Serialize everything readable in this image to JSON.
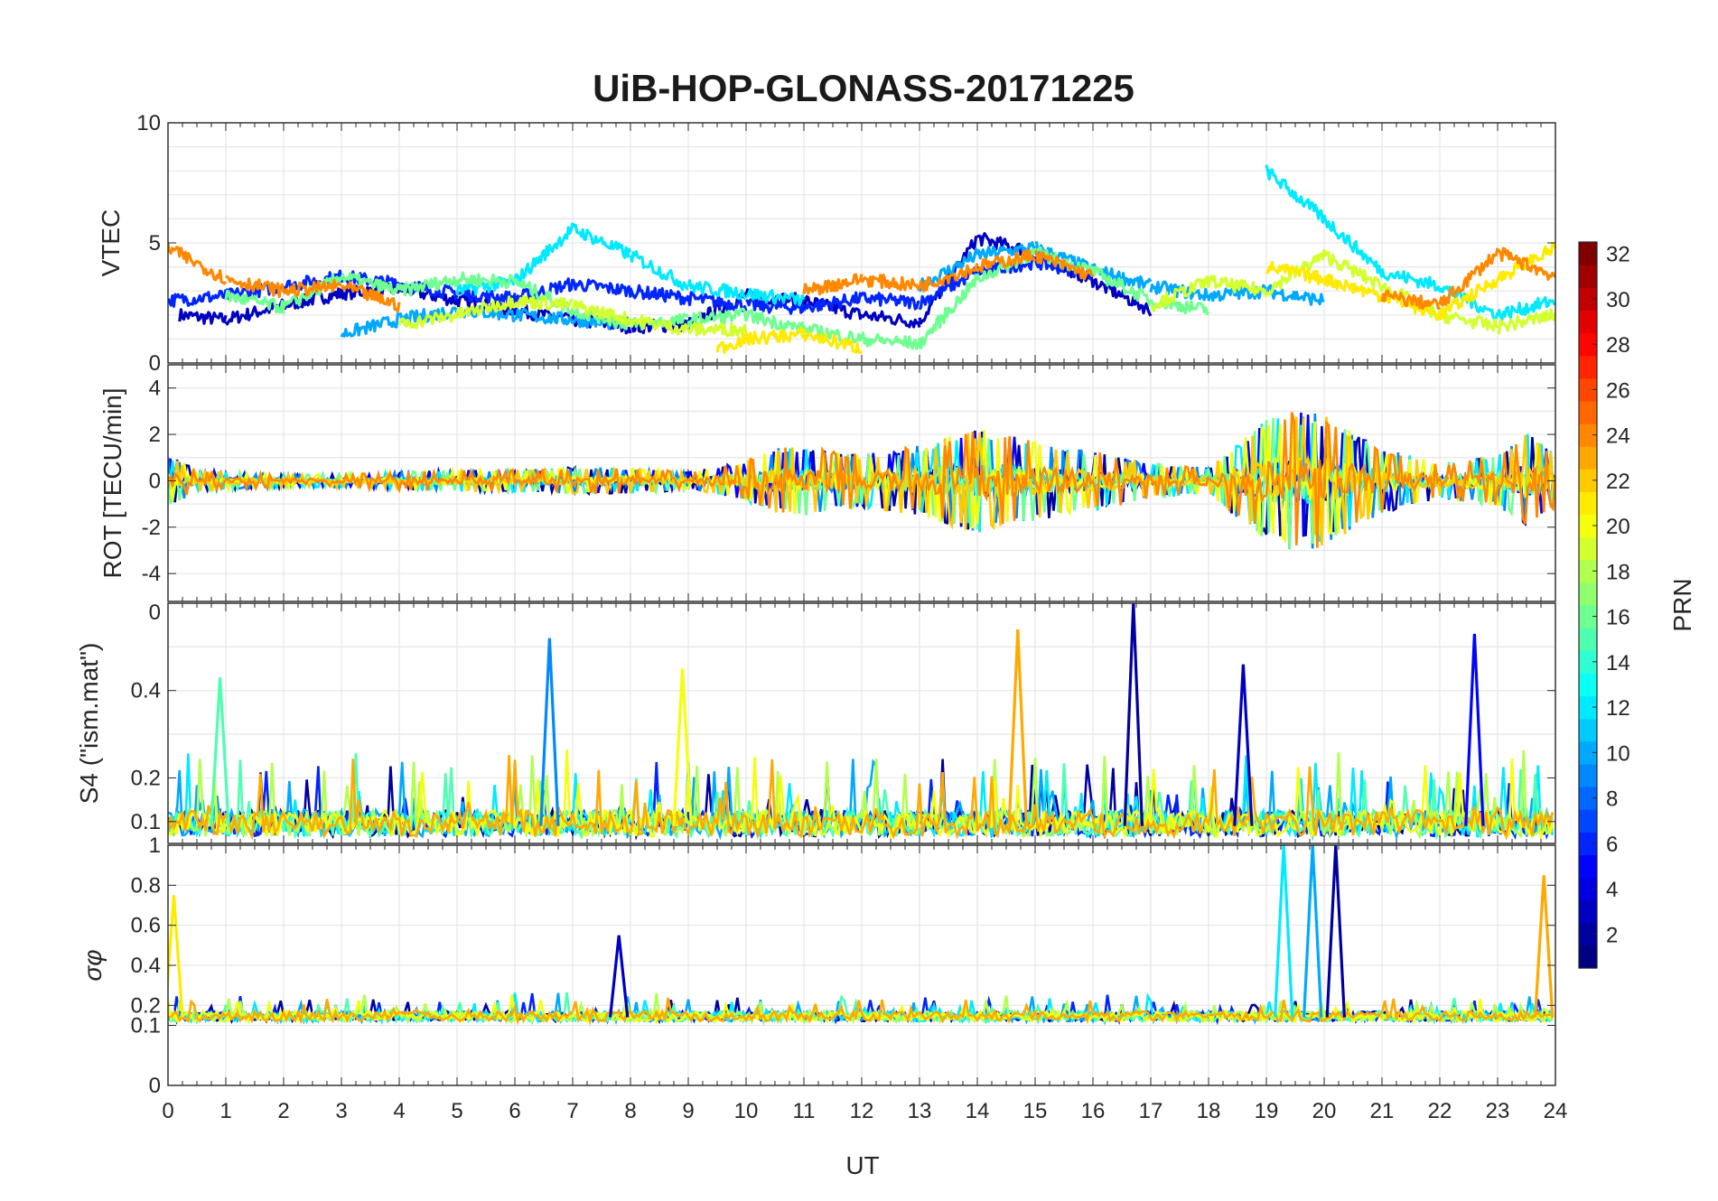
{
  "title": "UiB-HOP-GLONASS-20171225",
  "colorbar": {
    "label": "PRN",
    "ticks": [
      2,
      4,
      6,
      8,
      10,
      12,
      14,
      16,
      18,
      20,
      22,
      24,
      26,
      28,
      30,
      32
    ],
    "range": [
      1,
      32
    ],
    "colormap": "jet"
  },
  "chart_data": [
    {
      "type": "line",
      "panel": "vtec",
      "ylabel": "VTEC",
      "ylim": [
        0,
        10
      ],
      "yticks": [
        "0",
        "5",
        "10"
      ],
      "ytick_values": [
        0,
        5,
        10
      ],
      "grid": true,
      "series": [
        {
          "prn": 3,
          "x": [
            0.2,
            1,
            2,
            3,
            4,
            5,
            6,
            7,
            8,
            9,
            10,
            11,
            12,
            13,
            14,
            15,
            16,
            17
          ],
          "y": [
            2.0,
            1.8,
            2.4,
            2.9,
            3.1,
            2.6,
            2.2,
            1.8,
            1.5,
            1.6,
            2.8,
            2.6,
            2.0,
            1.7,
            5.2,
            4.6,
            3.4,
            2.2
          ]
        },
        {
          "prn": 6,
          "x": [
            0,
            1,
            2,
            3,
            4,
            5,
            6,
            7,
            8,
            9,
            10,
            11,
            12,
            13,
            14,
            15,
            16
          ],
          "y": [
            2.6,
            2.8,
            3.2,
            3.6,
            3.3,
            2.9,
            2.7,
            3.3,
            3.0,
            2.7,
            2.4,
            2.3,
            2.7,
            2.5,
            3.8,
            4.2,
            3.7
          ]
        },
        {
          "prn": 10,
          "x": [
            3,
            4,
            5,
            6,
            7,
            8,
            13,
            14,
            15,
            16,
            17,
            18,
            19,
            20
          ],
          "y": [
            1.2,
            1.8,
            2.2,
            2.0,
            1.8,
            1.6,
            3.2,
            4.5,
            4.8,
            3.9,
            3.2,
            2.8,
            3.0,
            2.6
          ]
        },
        {
          "prn": 12,
          "x": [
            5,
            6,
            7,
            8,
            9,
            10,
            11,
            19,
            20,
            21,
            22,
            23,
            24
          ],
          "y": [
            3.0,
            3.4,
            5.6,
            4.5,
            3.2,
            2.9,
            2.6,
            8.0,
            6.0,
            3.8,
            3.2,
            2.0,
            2.6
          ]
        },
        {
          "prn": 16,
          "x": [
            1,
            2,
            3,
            4,
            5,
            6,
            7,
            8,
            9,
            10,
            11,
            12,
            13,
            14,
            15,
            16,
            17,
            18
          ],
          "y": [
            2.8,
            2.3,
            3.6,
            3.0,
            3.5,
            3.4,
            2.2,
            1.6,
            1.8,
            2.0,
            1.4,
            1.0,
            0.8,
            3.5,
            4.6,
            3.8,
            2.6,
            2.2
          ]
        },
        {
          "prn": 19,
          "x": [
            4,
            5,
            6,
            7,
            8,
            9,
            10,
            17,
            18,
            19,
            20,
            21,
            22,
            23,
            24
          ],
          "y": [
            1.6,
            2.0,
            2.6,
            2.4,
            1.8,
            1.4,
            1.4,
            2.4,
            3.4,
            3.0,
            4.5,
            3.2,
            2.0,
            1.5,
            2.0
          ]
        },
        {
          "prn": 21,
          "x": [
            9.5,
            10,
            11,
            12,
            19,
            20,
            21,
            22,
            23,
            24
          ],
          "y": [
            0.6,
            1.0,
            1.2,
            0.6,
            4.0,
            3.5,
            2.8,
            2.0,
            3.5,
            4.8
          ]
        },
        {
          "prn": 24,
          "x": [
            0,
            1,
            2,
            3,
            4,
            11,
            12,
            13,
            14,
            15,
            16,
            21,
            22,
            23,
            24
          ],
          "y": [
            4.8,
            3.5,
            3.0,
            3.2,
            2.4,
            3.0,
            3.5,
            3.2,
            4.0,
            4.5,
            3.6,
            2.8,
            2.4,
            4.6,
            3.6
          ]
        }
      ]
    },
    {
      "type": "line",
      "panel": "rot",
      "ylabel": "ROT [TECU/min]",
      "ylim": [
        -5.2,
        5
      ],
      "yticks": [
        "-4",
        "-2",
        "0",
        "2",
        "4"
      ],
      "ytick_values": [
        -4,
        -2,
        0,
        2,
        4
      ],
      "grid": true,
      "envelope": {
        "x": [
          0,
          0.5,
          1,
          2,
          3,
          4,
          5,
          6,
          7,
          8,
          9,
          10,
          10.5,
          11,
          12,
          13,
          14,
          14.5,
          15,
          16,
          17,
          18,
          19,
          19.5,
          20,
          20.5,
          21,
          22,
          23,
          23.5,
          24
        ],
        "amplitude": [
          1.2,
          0.5,
          0.4,
          0.3,
          0.3,
          0.4,
          0.5,
          0.5,
          0.6,
          0.6,
          0.4,
          0.9,
          1.5,
          1.6,
          1.2,
          1.6,
          2.4,
          2.2,
          1.8,
          1.4,
          0.8,
          0.6,
          2.8,
          3.2,
          3.0,
          2.2,
          1.5,
          0.8,
          1.2,
          2.2,
          1.2
        ]
      }
    },
    {
      "type": "line",
      "panel": "s4",
      "ylabel": "S4 (\"ism.mat\")",
      "ylim": [
        0.05,
        0.6
      ],
      "yticks": [
        "0.1",
        "0.2",
        "0.4"
      ],
      "ytick_values": [
        0.1,
        0.2,
        0.4
      ],
      "ytick_top": "0",
      "grid": true,
      "peaks": [
        {
          "x": 0.9,
          "y": 0.43,
          "prn": 15
        },
        {
          "x": 6.6,
          "y": 0.52,
          "prn": 9
        },
        {
          "x": 8.9,
          "y": 0.45,
          "prn": 20
        },
        {
          "x": 14.7,
          "y": 0.54,
          "prn": 23
        },
        {
          "x": 16.7,
          "y": 0.6,
          "prn": 2
        },
        {
          "x": 18.6,
          "y": 0.46,
          "prn": 3
        },
        {
          "x": 22.6,
          "y": 0.53,
          "prn": 5
        }
      ]
    },
    {
      "type": "line",
      "panel": "sigma_phi",
      "ylabel": "σφ",
      "ylim": [
        0,
        1
      ],
      "yticks": [
        "0",
        "0.1",
        "0.2",
        "0.4",
        "0.6",
        "0.8",
        "1"
      ],
      "ytick_values": [
        0,
        0.1,
        0.2,
        0.4,
        0.6,
        0.8,
        1
      ],
      "xlabel": "UT",
      "xlim": [
        0,
        24
      ],
      "xticks": [
        "0",
        "1",
        "2",
        "3",
        "4",
        "5",
        "6",
        "7",
        "8",
        "9",
        "10",
        "11",
        "12",
        "13",
        "14",
        "15",
        "16",
        "17",
        "18",
        "19",
        "20",
        "21",
        "22",
        "23",
        "24"
      ],
      "grid": true,
      "peaks": [
        {
          "x": 0.1,
          "y": 0.75,
          "prn": 21
        },
        {
          "x": 7.8,
          "y": 0.55,
          "prn": 3
        },
        {
          "x": 19.3,
          "y": 1.0,
          "prn": 12
        },
        {
          "x": 19.8,
          "y": 1.0,
          "prn": 10
        },
        {
          "x": 20.2,
          "y": 1.0,
          "prn": 2
        },
        {
          "x": 23.8,
          "y": 0.85,
          "prn": 23
        }
      ]
    }
  ]
}
